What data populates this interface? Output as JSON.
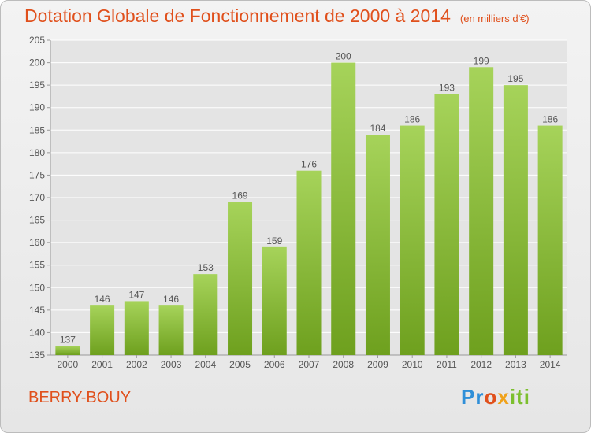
{
  "title": "Dotation Globale de Fonctionnement de 2000 à 2014",
  "title_unit": "(en milliers d'€)",
  "commune": "BERRY-BOUY",
  "brand": {
    "p": "Pr",
    "o": "o",
    "x": "x",
    "iti": "iti"
  },
  "colors": {
    "accent": "#e0501c",
    "bar_light": "#a6d35a",
    "bar_dark": "#6ea01e",
    "grid": "#ffffff"
  },
  "chart_data": {
    "type": "bar",
    "title": "Dotation Globale de Fonctionnement de 2000 à 2014",
    "xlabel": "",
    "ylabel": "",
    "ylim": [
      135,
      205
    ],
    "yticks": [
      135,
      140,
      145,
      150,
      155,
      160,
      165,
      170,
      175,
      180,
      185,
      190,
      195,
      200,
      205
    ],
    "categories": [
      "2000",
      "2001",
      "2002",
      "2003",
      "2004",
      "2005",
      "2006",
      "2007",
      "2008",
      "2009",
      "2010",
      "2011",
      "2012",
      "2013",
      "2014"
    ],
    "values": [
      137,
      146,
      147,
      146,
      153,
      169,
      159,
      176,
      200,
      184,
      186,
      193,
      199,
      195,
      186
    ]
  }
}
